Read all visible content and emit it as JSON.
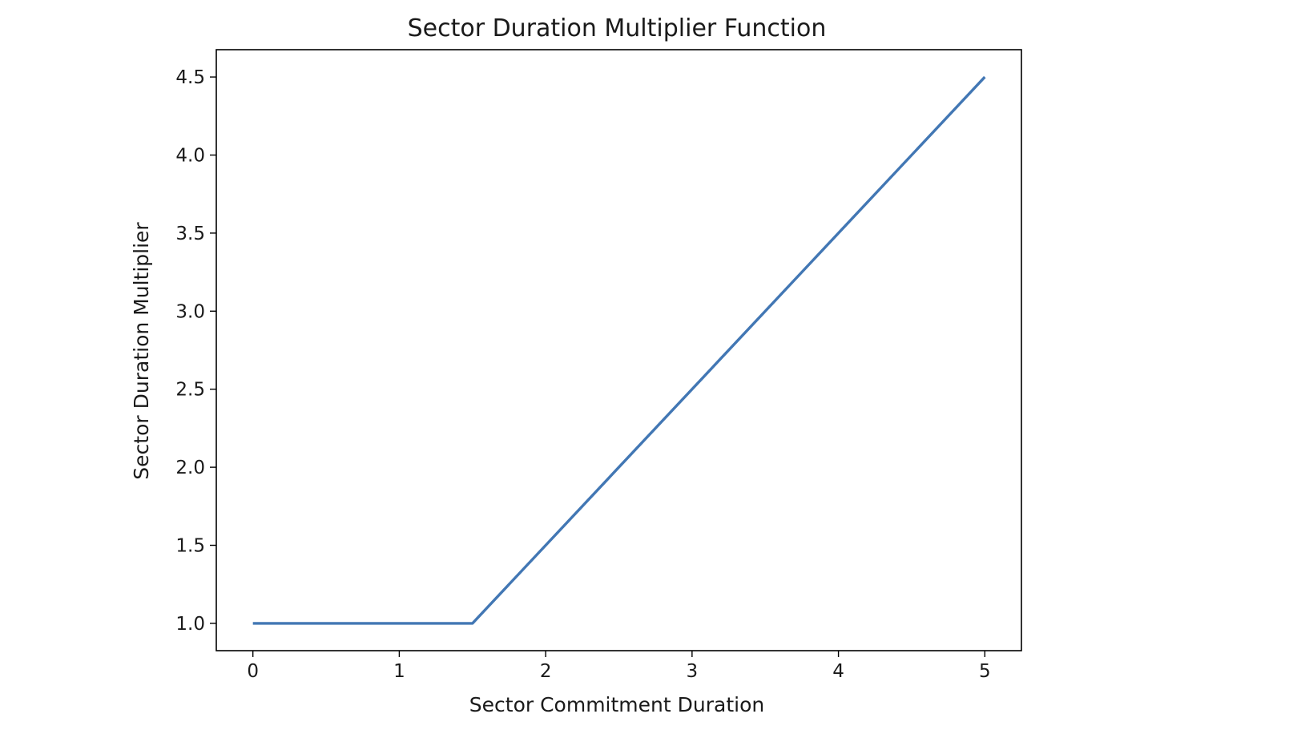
{
  "chart_data": {
    "type": "line",
    "title": "Sector Duration Multiplier Function",
    "xlabel": "Sector Commitment Duration",
    "ylabel": "Sector Duration Multiplier",
    "xlim": [
      -0.25,
      5.25
    ],
    "ylim": [
      0.825,
      4.675
    ],
    "xticks": [
      0,
      1,
      2,
      3,
      4,
      5
    ],
    "yticks": [
      1.0,
      1.5,
      2.0,
      2.5,
      3.0,
      3.5,
      4.0,
      4.5
    ],
    "xtick_labels": [
      "0",
      "1",
      "2",
      "3",
      "4",
      "5"
    ],
    "ytick_labels": [
      "1.0",
      "1.5",
      "2.0",
      "2.5",
      "3.0",
      "3.5",
      "4.0",
      "4.5"
    ],
    "grid": false,
    "series": [
      {
        "x": [
          0,
          1.5,
          5
        ],
        "y": [
          1.0,
          1.0,
          4.5
        ],
        "color": "#4277b4"
      }
    ]
  }
}
